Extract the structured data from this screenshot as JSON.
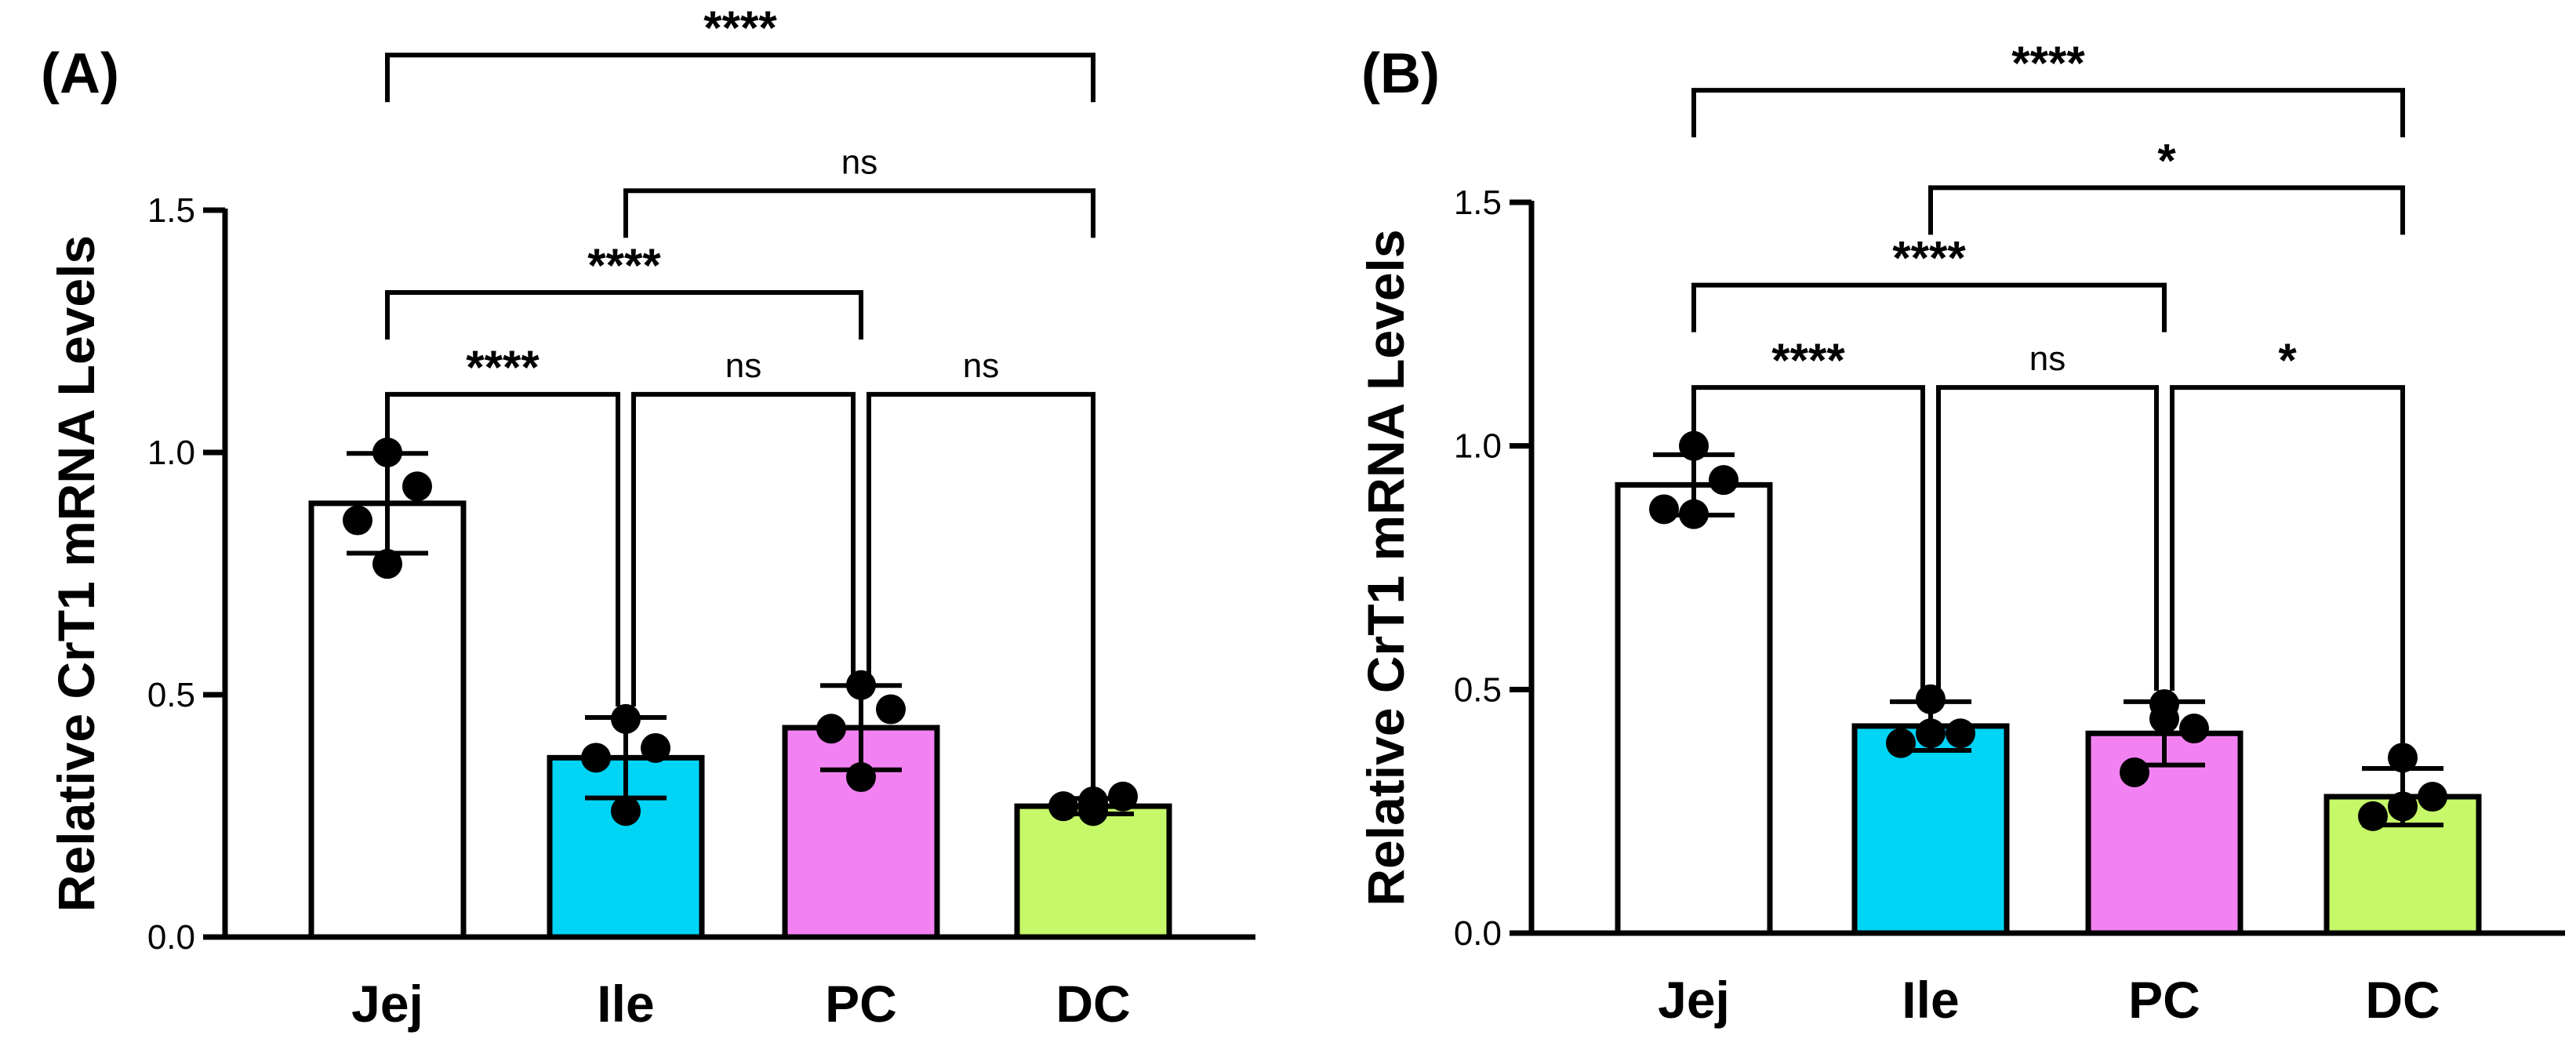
{
  "chart_data": [
    {
      "type": "bar",
      "panel_label": "(A)",
      "ylabel": "Relative CrT1 mRNA Levels",
      "xlabel": "",
      "ylim": [
        0,
        1.5
      ],
      "yticks": [
        "0.0",
        "0.5",
        "1.0",
        "1.5"
      ],
      "categories": [
        "Jej",
        "Ile",
        "PC",
        "DC"
      ],
      "colors": [
        "#ffffff",
        "#00d4f5",
        "#f282f2",
        "#c6f86a"
      ],
      "means": [
        0.895,
        0.37,
        0.432,
        0.27
      ],
      "sd": [
        0.103,
        0.083,
        0.087,
        0.016
      ],
      "points": [
        [
          1.0,
          0.93,
          0.86,
          0.77
        ],
        [
          0.45,
          0.39,
          0.37,
          0.26
        ],
        [
          0.52,
          0.47,
          0.43,
          0.33
        ],
        [
          0.26,
          0.29,
          0.27,
          0.28
        ]
      ],
      "comparisons": [
        {
          "from": 0,
          "to": 3,
          "label": "****",
          "level": 1.82
        },
        {
          "from": 1,
          "to": 3,
          "label": "ns",
          "level": 1.54
        },
        {
          "from": 0,
          "to": 2,
          "label": "****",
          "level": 1.33
        },
        {
          "from": 0,
          "to": 1,
          "label": "****",
          "level": 1.12
        },
        {
          "from": 1,
          "to": 2,
          "label": "ns",
          "level": 1.12
        },
        {
          "from": 2,
          "to": 3,
          "label": "ns",
          "level": 1.12
        }
      ]
    },
    {
      "type": "bar",
      "panel_label": "(B)",
      "ylabel": "Relative CrT1 mRNA Levels",
      "xlabel": "",
      "ylim": [
        0,
        1.5
      ],
      "yticks": [
        "0.0",
        "0.5",
        "1.0",
        "1.5"
      ],
      "categories": [
        "Jej",
        "Ile",
        "PC",
        "DC"
      ],
      "colors": [
        "#ffffff",
        "#00d4f5",
        "#f282f2",
        "#c6f86a"
      ],
      "means": [
        0.92,
        0.425,
        0.41,
        0.28
      ],
      "sd": [
        0.062,
        0.05,
        0.065,
        0.058
      ],
      "points": [
        [
          1.0,
          0.93,
          0.87,
          0.86
        ],
        [
          0.48,
          0.41,
          0.39,
          0.41
        ],
        [
          0.47,
          0.42,
          0.33,
          0.44
        ],
        [
          0.36,
          0.28,
          0.24,
          0.26
        ]
      ],
      "comparisons": [
        {
          "from": 0,
          "to": 3,
          "label": "****",
          "level": 1.73
        },
        {
          "from": 1,
          "to": 3,
          "label": "*",
          "level": 1.53
        },
        {
          "from": 0,
          "to": 2,
          "label": "****",
          "level": 1.33
        },
        {
          "from": 0,
          "to": 1,
          "label": "****",
          "level": 1.12
        },
        {
          "from": 1,
          "to": 2,
          "label": "ns",
          "level": 1.12
        },
        {
          "from": 2,
          "to": 3,
          "label": "*",
          "level": 1.12
        }
      ]
    }
  ]
}
